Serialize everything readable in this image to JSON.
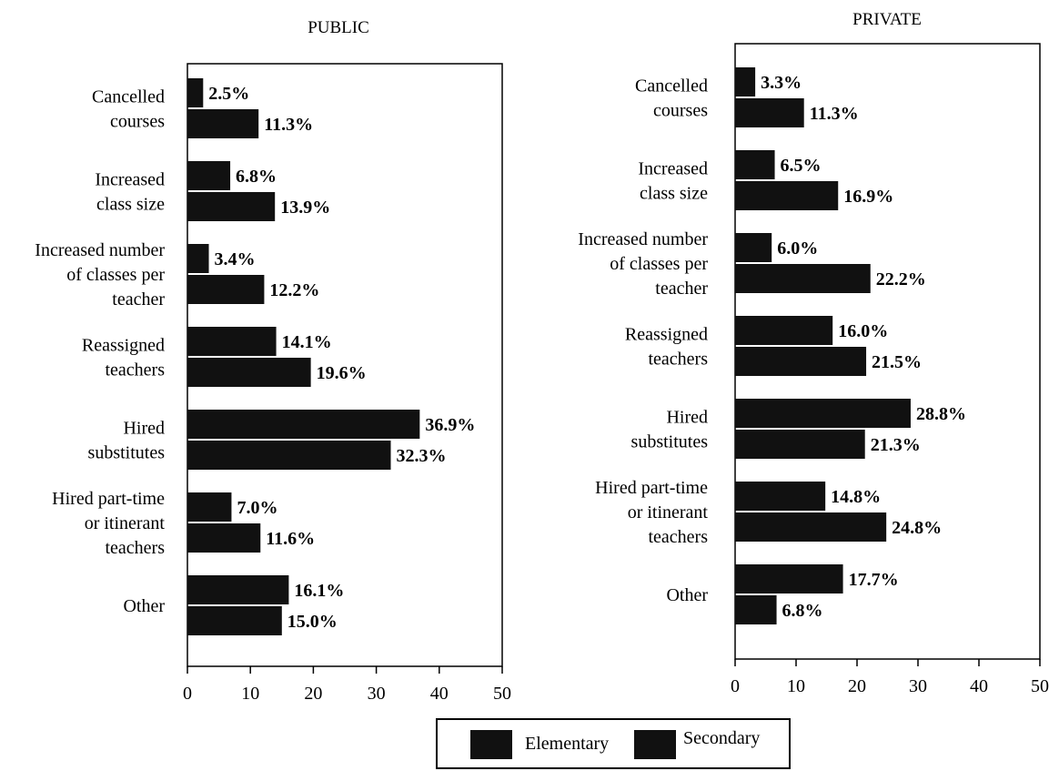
{
  "chart_data": [
    {
      "type": "bar",
      "orientation": "horizontal",
      "title": "PUBLIC",
      "categories": [
        [
          "Cancelled",
          "courses"
        ],
        [
          "Increased",
          "class size"
        ],
        [
          "Increased number",
          "of classes per",
          "teacher"
        ],
        [
          "Reassigned",
          "teachers"
        ],
        [
          "Hired",
          "substitutes"
        ],
        [
          "Hired part-time",
          "or itinerant",
          "teachers"
        ],
        [
          "Other"
        ]
      ],
      "series": [
        {
          "name": "Elementary",
          "values": [
            2.5,
            6.8,
            3.4,
            14.1,
            36.9,
            7.0,
            16.1
          ],
          "labels": [
            "2.5%",
            "6.8%",
            "3.4%",
            "14.1%",
            "36.9%",
            "7.0%",
            "16.1%"
          ]
        },
        {
          "name": "Secondary",
          "values": [
            11.3,
            13.9,
            12.2,
            19.6,
            32.3,
            11.6,
            15.0
          ],
          "labels": [
            "11.3%",
            "13.9%",
            "12.2%",
            "19.6%",
            "32.3%",
            "11.6%",
            "15.0%"
          ]
        }
      ],
      "xlim": [
        0,
        50
      ],
      "xticks": [
        "0",
        "10",
        "20",
        "30",
        "40",
        "50"
      ],
      "bar_color": "#111111"
    },
    {
      "type": "bar",
      "orientation": "horizontal",
      "title": "PRIVATE",
      "categories": [
        [
          "Cancelled",
          "courses"
        ],
        [
          "Increased",
          "class size"
        ],
        [
          "Increased number",
          "of classes per",
          "teacher"
        ],
        [
          "Reassigned",
          "teachers"
        ],
        [
          "Hired",
          "substitutes"
        ],
        [
          "Hired part-time",
          "or itinerant",
          "teachers"
        ],
        [
          "Other"
        ]
      ],
      "series": [
        {
          "name": "Elementary",
          "values": [
            3.3,
            6.5,
            6.0,
            16.0,
            28.8,
            14.8,
            17.7
          ],
          "labels": [
            "3.3%",
            "6.5%",
            "6.0%",
            "16.0%",
            "28.8%",
            "14.8%",
            "17.7%"
          ]
        },
        {
          "name": "Secondary",
          "values": [
            11.3,
            16.9,
            22.2,
            21.5,
            21.3,
            24.8,
            6.8
          ],
          "labels": [
            "11.3%",
            "16.9%",
            "22.2%",
            "21.5%",
            "21.3%",
            "24.8%",
            "6.8%"
          ]
        }
      ],
      "xlim": [
        0,
        50
      ],
      "xticks": [
        "0",
        "10",
        "20",
        "30",
        "40",
        "50"
      ],
      "bar_color": "#111111"
    }
  ],
  "legend": {
    "items": [
      {
        "label": "Elementary",
        "color": "#111111"
      },
      {
        "label": "Secondary",
        "color": "#111111"
      }
    ]
  }
}
